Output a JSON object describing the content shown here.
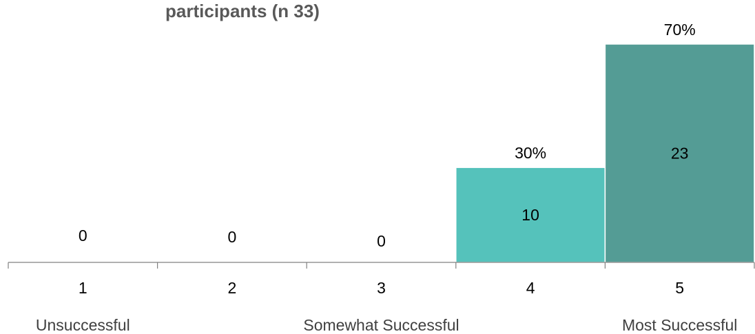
{
  "chart_data": {
    "type": "bar",
    "title": "participants (n 33)",
    "categories": [
      "1",
      "2",
      "3",
      "4",
      "5"
    ],
    "values": [
      0,
      0,
      0,
      10,
      23
    ],
    "percent_labels": [
      "",
      "",
      "",
      "30%",
      "70%"
    ],
    "count_labels": [
      "0",
      "0",
      "0",
      "10",
      "23"
    ],
    "category_descriptions": [
      "Unsuccessful",
      "",
      "Somewhat Successful",
      "",
      "Most Successful"
    ],
    "ylim": [
      0,
      23
    ],
    "grid": false,
    "legend": "none",
    "colors": {
      "bar_4": "#55c2bb",
      "bar_5": "#549c95",
      "bar_border": "#ffffff",
      "axis": "#808080",
      "title": "#595959"
    }
  }
}
